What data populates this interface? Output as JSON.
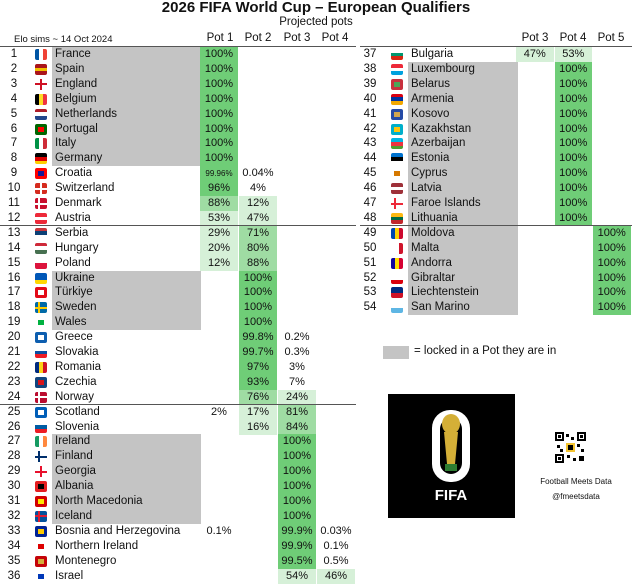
{
  "chart_data": {
    "type": "table",
    "title": "2026 FIFA World Cup – European Qualifiers",
    "subtitle": "Projected pots",
    "note": "Elo sims ~ 14 Oct 2024",
    "columns_left": [
      "Pot 1",
      "Pot 2",
      "Pot 3",
      "Pot 4"
    ],
    "columns_right": [
      "Pot 3",
      "Pot 4",
      "Pot 5"
    ],
    "legend": "= locked in a Pot they are in",
    "colors": {
      "strong": "#6fcd77",
      "mid": "#9fdca3",
      "light": "#d6f0d8",
      "locked": "#c4c4c4",
      "line": "#555555"
    },
    "left_rows": [
      {
        "rank": "1",
        "team": "France",
        "locked": true,
        "flag": "fr",
        "cells": [
          "100%",
          "",
          "",
          ""
        ]
      },
      {
        "rank": "2",
        "team": "Spain",
        "locked": true,
        "flag": "es",
        "cells": [
          "100%",
          "",
          "",
          ""
        ]
      },
      {
        "rank": "3",
        "team": "England",
        "locked": true,
        "flag": "en",
        "cells": [
          "100%",
          "",
          "",
          ""
        ]
      },
      {
        "rank": "4",
        "team": "Belgium",
        "locked": true,
        "flag": "be",
        "cells": [
          "100%",
          "",
          "",
          ""
        ]
      },
      {
        "rank": "5",
        "team": "Netherlands",
        "locked": true,
        "flag": "nl",
        "cells": [
          "100%",
          "",
          "",
          ""
        ]
      },
      {
        "rank": "6",
        "team": "Portugal",
        "locked": true,
        "flag": "pt",
        "cells": [
          "100%",
          "",
          "",
          ""
        ]
      },
      {
        "rank": "7",
        "team": "Italy",
        "locked": true,
        "flag": "it",
        "cells": [
          "100%",
          "",
          "",
          ""
        ]
      },
      {
        "rank": "8",
        "team": "Germany",
        "locked": true,
        "flag": "de",
        "cells": [
          "100%",
          "",
          "",
          ""
        ]
      },
      {
        "rank": "9",
        "team": "Croatia",
        "locked": false,
        "flag": "hr",
        "cells": [
          "99.96%",
          "0.04%",
          "",
          ""
        ]
      },
      {
        "rank": "10",
        "team": "Switzerland",
        "locked": false,
        "flag": "ch",
        "cells": [
          "96%",
          "4%",
          "",
          ""
        ]
      },
      {
        "rank": "11",
        "team": "Denmark",
        "locked": false,
        "flag": "dk",
        "cells": [
          "88%",
          "12%",
          "",
          ""
        ]
      },
      {
        "rank": "12",
        "team": "Austria",
        "locked": false,
        "flag": "at",
        "cells": [
          "53%",
          "47%",
          "",
          ""
        ]
      },
      {
        "rank": "13",
        "team": "Serbia",
        "locked": false,
        "flag": "rs",
        "cells": [
          "29%",
          "71%",
          "",
          ""
        ]
      },
      {
        "rank": "14",
        "team": "Hungary",
        "locked": false,
        "flag": "hu",
        "cells": [
          "20%",
          "80%",
          "",
          ""
        ]
      },
      {
        "rank": "15",
        "team": "Poland",
        "locked": false,
        "flag": "pl",
        "cells": [
          "12%",
          "88%",
          "",
          ""
        ]
      },
      {
        "rank": "16",
        "team": "Ukraine",
        "locked": true,
        "flag": "ua",
        "cells": [
          "",
          "100%",
          "",
          ""
        ]
      },
      {
        "rank": "17",
        "team": "Türkiye",
        "locked": true,
        "flag": "tr",
        "cells": [
          "",
          "100%",
          "",
          ""
        ]
      },
      {
        "rank": "18",
        "team": "Sweden",
        "locked": true,
        "flag": "se",
        "cells": [
          "",
          "100%",
          "",
          ""
        ]
      },
      {
        "rank": "19",
        "team": "Wales",
        "locked": true,
        "flag": "wa",
        "cells": [
          "",
          "100%",
          "",
          ""
        ]
      },
      {
        "rank": "20",
        "team": "Greece",
        "locked": false,
        "flag": "gr",
        "cells": [
          "",
          "99.8%",
          "0.2%",
          ""
        ]
      },
      {
        "rank": "21",
        "team": "Slovakia",
        "locked": false,
        "flag": "sk",
        "cells": [
          "",
          "99.7%",
          "0.3%",
          ""
        ]
      },
      {
        "rank": "22",
        "team": "Romania",
        "locked": false,
        "flag": "ro",
        "cells": [
          "",
          "97%",
          "3%",
          ""
        ]
      },
      {
        "rank": "23",
        "team": "Czechia",
        "locked": false,
        "flag": "cz",
        "cells": [
          "",
          "93%",
          "7%",
          ""
        ]
      },
      {
        "rank": "24",
        "team": "Norway",
        "locked": false,
        "flag": "no",
        "cells": [
          "",
          "76%",
          "24%",
          ""
        ]
      },
      {
        "rank": "25",
        "team": "Scotland",
        "locked": false,
        "flag": "sc",
        "cells": [
          "2%",
          "17%",
          "81%",
          ""
        ]
      },
      {
        "rank": "26",
        "team": "Slovenia",
        "locked": false,
        "flag": "si",
        "cells": [
          "",
          "16%",
          "84%",
          ""
        ]
      },
      {
        "rank": "27",
        "team": "Ireland",
        "locked": true,
        "flag": "ie",
        "cells": [
          "",
          "",
          "100%",
          ""
        ]
      },
      {
        "rank": "28",
        "team": "Finland",
        "locked": true,
        "flag": "fi",
        "cells": [
          "",
          "",
          "100%",
          ""
        ]
      },
      {
        "rank": "29",
        "team": "Georgia",
        "locked": true,
        "flag": "ge",
        "cells": [
          "",
          "",
          "100%",
          ""
        ]
      },
      {
        "rank": "30",
        "team": "Albania",
        "locked": true,
        "flag": "al",
        "cells": [
          "",
          "",
          "100%",
          ""
        ]
      },
      {
        "rank": "31",
        "team": "North Macedonia",
        "locked": true,
        "flag": "mk",
        "cells": [
          "",
          "",
          "100%",
          ""
        ]
      },
      {
        "rank": "32",
        "team": "Iceland",
        "locked": true,
        "flag": "is",
        "cells": [
          "",
          "",
          "100%",
          ""
        ]
      },
      {
        "rank": "33",
        "team": "Bosnia and Herzegovina",
        "locked": false,
        "flag": "ba",
        "cells": [
          "0.1%",
          "",
          "99.9%",
          "0.03%"
        ]
      },
      {
        "rank": "34",
        "team": "Northern Ireland",
        "locked": false,
        "flag": "ni",
        "cells": [
          "",
          "",
          "99.9%",
          "0.1%"
        ]
      },
      {
        "rank": "35",
        "team": "Montenegro",
        "locked": false,
        "flag": "me",
        "cells": [
          "",
          "",
          "99.5%",
          "0.5%"
        ]
      },
      {
        "rank": "36",
        "team": "Israel",
        "locked": false,
        "flag": "il",
        "cells": [
          "",
          "",
          "54%",
          "46%"
        ]
      }
    ],
    "right_rows": [
      {
        "rank": "37",
        "team": "Bulgaria",
        "locked": false,
        "flag": "bg",
        "cells": [
          "47%",
          "53%",
          ""
        ]
      },
      {
        "rank": "38",
        "team": "Luxembourg",
        "locked": true,
        "flag": "lu",
        "cells": [
          "",
          "100%",
          ""
        ]
      },
      {
        "rank": "39",
        "team": "Belarus",
        "locked": true,
        "flag": "by",
        "cells": [
          "",
          "100%",
          ""
        ]
      },
      {
        "rank": "40",
        "team": "Armenia",
        "locked": true,
        "flag": "am",
        "cells": [
          "",
          "100%",
          ""
        ]
      },
      {
        "rank": "41",
        "team": "Kosovo",
        "locked": true,
        "flag": "xk",
        "cells": [
          "",
          "100%",
          ""
        ]
      },
      {
        "rank": "42",
        "team": "Kazakhstan",
        "locked": true,
        "flag": "kz",
        "cells": [
          "",
          "100%",
          ""
        ]
      },
      {
        "rank": "43",
        "team": "Azerbaijan",
        "locked": true,
        "flag": "az",
        "cells": [
          "",
          "100%",
          ""
        ]
      },
      {
        "rank": "44",
        "team": "Estonia",
        "locked": true,
        "flag": "ee",
        "cells": [
          "",
          "100%",
          ""
        ]
      },
      {
        "rank": "45",
        "team": "Cyprus",
        "locked": true,
        "flag": "cy",
        "cells": [
          "",
          "100%",
          ""
        ]
      },
      {
        "rank": "46",
        "team": "Latvia",
        "locked": true,
        "flag": "lv",
        "cells": [
          "",
          "100%",
          ""
        ]
      },
      {
        "rank": "47",
        "team": "Faroe Islands",
        "locked": true,
        "flag": "fo",
        "cells": [
          "",
          "100%",
          ""
        ]
      },
      {
        "rank": "48",
        "team": "Lithuania",
        "locked": true,
        "flag": "lt",
        "cells": [
          "",
          "100%",
          ""
        ]
      },
      {
        "rank": "49",
        "team": "Moldova",
        "locked": true,
        "flag": "md",
        "cells": [
          "",
          "",
          "100%"
        ]
      },
      {
        "rank": "50",
        "team": "Malta",
        "locked": true,
        "flag": "mt",
        "cells": [
          "",
          "",
          "100%"
        ]
      },
      {
        "rank": "51",
        "team": "Andorra",
        "locked": true,
        "flag": "ad",
        "cells": [
          "",
          "",
          "100%"
        ]
      },
      {
        "rank": "52",
        "team": "Gibraltar",
        "locked": true,
        "flag": "gi",
        "cells": [
          "",
          "",
          "100%"
        ]
      },
      {
        "rank": "53",
        "team": "Liechtenstein",
        "locked": true,
        "flag": "li",
        "cells": [
          "",
          "",
          "100%"
        ]
      },
      {
        "rank": "54",
        "team": "San Marino",
        "locked": true,
        "flag": "sm",
        "cells": [
          "",
          "",
          "100%"
        ]
      }
    ]
  },
  "branding": {
    "logo_text": "FIFA",
    "credit_name": "Football Meets Data",
    "credit_handle": "@fmeetsdata"
  }
}
